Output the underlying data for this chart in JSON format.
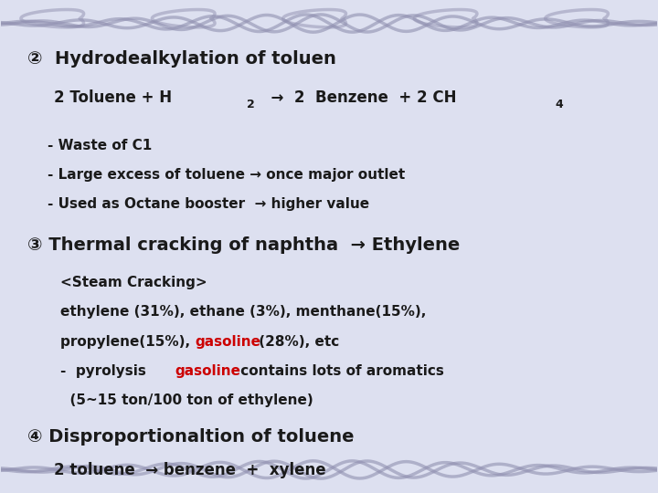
{
  "bg_color": "#dde0f0",
  "bg_main": "#e8eaf5",
  "title2": "②  Hydrodealkylation of toluen",
  "eq2": "2 Toluene + H",
  "eq2_sub1": "2",
  "eq2_arrow": " →  2  Benzene  + 2 CH",
  "eq2_sub2": "4",
  "bullet1a": "- Waste of C1",
  "bullet1b": "- Large excess of toluene → once major outlet",
  "bullet1c": "- Used as Octane booster  → higher value",
  "title3": "③ Thermal cracking of naphtha  → Ethylene",
  "sub3a": "<Steam Cracking>",
  "sub3b": "ethylene (31%), ethane (3%), menthane(15%),",
  "sub3c1": "propylene(15%), ",
  "sub3c2": "gasoline",
  "sub3c3": " (28%), etc",
  "sub3d1": "-  pyrolysis ",
  "sub3d2": "gasoline",
  "sub3d3": " contains lots of aromatics",
  "sub3e": "  (5~15 ton/100 ton of ethylene)",
  "title4": "④ Disproportionaltion of toluene",
  "sub4": "2 toluene  → benzene  +  xylene",
  "text_color": "#1a1a1a",
  "red_color": "#cc0000",
  "wave_color": "#9090b0"
}
